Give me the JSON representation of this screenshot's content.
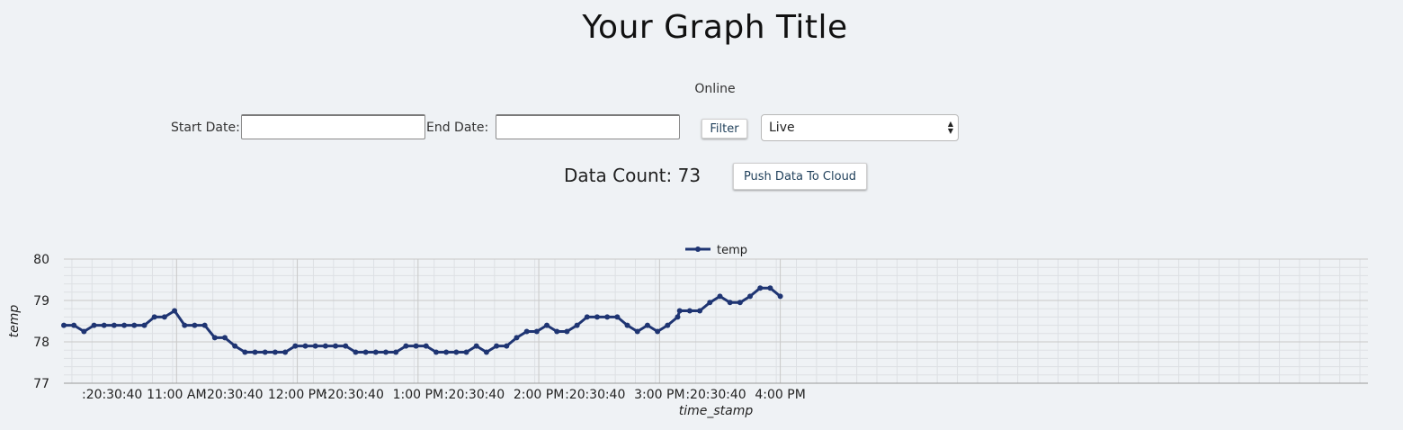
{
  "page": {
    "title": "Your Graph Title",
    "status": "Online"
  },
  "filter": {
    "start_label": "Start Date:",
    "start_value": "",
    "end_label": "End Date:",
    "end_value": "",
    "filter_button": "Filter",
    "mode_select": "Live",
    "count_label": "Data Count: 73",
    "push_button": "Push Data To Cloud"
  },
  "colors": {
    "line": "#1f3573",
    "background": "#eff2f5",
    "grid_major": "#c8c8c8",
    "grid_minor": "#dde0e4"
  },
  "chart_data": {
    "type": "line",
    "title": "",
    "xlabel": "time_stamp",
    "ylabel": "temp",
    "ylim": [
      77,
      80
    ],
    "yticks": [
      77,
      78,
      79,
      80
    ],
    "legend": {
      "position": "top-center",
      "entries": [
        "temp"
      ]
    },
    "grid": true,
    "x_range": [
      "10:43",
      "16:07"
    ],
    "xticks": [
      {
        "t": "10:50",
        "label": ":20"
      },
      {
        "t": "10:55",
        "label": ":30"
      },
      {
        "t": "11:00",
        "label": ":40"
      },
      {
        "t": "11:11",
        "label": "11:00 AM"
      },
      {
        "t": "11:20",
        "label": ":20"
      },
      {
        "t": "11:25",
        "label": ":30"
      },
      {
        "t": "11:30",
        "label": ":40"
      },
      {
        "t": "11:41",
        "label": "12:00 PM"
      },
      {
        "t": "11:50",
        "label": ":20"
      },
      {
        "t": "11:55",
        "label": ":30"
      },
      {
        "t": "12:00",
        "label": ":40"
      },
      {
        "t": "12:11",
        "label": "1:00 PM"
      },
      {
        "t": "12:20",
        "label": ":20"
      },
      {
        "t": "12:25",
        "label": ":30"
      },
      {
        "t": "12:30",
        "label": ":40"
      },
      {
        "t": "12:41",
        "label": "2:00 PM"
      },
      {
        "t": "12:50",
        "label": ":20"
      },
      {
        "t": "12:55",
        "label": ":30"
      },
      {
        "t": "13:00",
        "label": ":40"
      },
      {
        "t": "13:11",
        "label": "3:00 PM"
      },
      {
        "t": "13:20",
        "label": ":20"
      },
      {
        "t": "13:25",
        "label": ":30"
      },
      {
        "t": "13:30",
        "label": ":40"
      },
      {
        "t": "13:41",
        "label": "4:00 PM"
      }
    ],
    "series": [
      {
        "name": "temp",
        "points": [
          [
            "10:43",
            78.4
          ],
          [
            "10:45.5",
            78.4
          ],
          [
            "10:48",
            78.25
          ],
          [
            "10:50.5",
            78.4
          ],
          [
            "10:53",
            78.4
          ],
          [
            "10:55.5",
            78.4
          ],
          [
            "10:58",
            78.4
          ],
          [
            "11:00.5",
            78.4
          ],
          [
            "11:03",
            78.4
          ],
          [
            "11:05.5",
            78.6
          ],
          [
            "11:08",
            78.6
          ],
          [
            "11:10.5",
            78.75
          ],
          [
            "11:13",
            78.4
          ],
          [
            "11:15.5",
            78.4
          ],
          [
            "11:18",
            78.4
          ],
          [
            "11:20.5",
            78.1
          ],
          [
            "11:23",
            78.1
          ],
          [
            "11:25.5",
            77.9
          ],
          [
            "11:28",
            77.75
          ],
          [
            "11:30.5",
            77.75
          ],
          [
            "11:33",
            77.75
          ],
          [
            "11:35.5",
            77.75
          ],
          [
            "11:38",
            77.75
          ],
          [
            "11:40.5",
            77.9
          ],
          [
            "11:43",
            77.9
          ],
          [
            "11:45.5",
            77.9
          ],
          [
            "11:48",
            77.9
          ],
          [
            "11:50.5",
            77.9
          ],
          [
            "11:53",
            77.9
          ],
          [
            "11:55.5",
            77.75
          ],
          [
            "11:58",
            77.75
          ],
          [
            "12:00.5",
            77.75
          ],
          [
            "12:03",
            77.75
          ],
          [
            "12:05.5",
            77.75
          ],
          [
            "12:08",
            77.9
          ],
          [
            "12:10.5",
            77.9
          ],
          [
            "12:13",
            77.9
          ],
          [
            "12:15.5",
            77.75
          ],
          [
            "12:18",
            77.75
          ],
          [
            "12:20.5",
            77.75
          ],
          [
            "12:23",
            77.75
          ],
          [
            "12:25.5",
            77.9
          ],
          [
            "12:28",
            77.75
          ],
          [
            "12:30.5",
            77.9
          ],
          [
            "12:33",
            77.9
          ],
          [
            "12:35.5",
            78.1
          ],
          [
            "12:38",
            78.25
          ],
          [
            "12:40.5",
            78.25
          ],
          [
            "12:43",
            78.4
          ],
          [
            "12:45.5",
            78.25
          ],
          [
            "12:48",
            78.25
          ],
          [
            "12:50.5",
            78.4
          ],
          [
            "12:53",
            78.6
          ],
          [
            "12:55.5",
            78.6
          ],
          [
            "12:58",
            78.6
          ],
          [
            "13:00.5",
            78.6
          ],
          [
            "13:03",
            78.4
          ],
          [
            "13:05.5",
            78.25
          ],
          [
            "13:08",
            78.4
          ],
          [
            "13:10.5",
            78.25
          ],
          [
            "13:13",
            78.4
          ],
          [
            "13:15.5",
            78.6
          ],
          [
            "13:16",
            78.75
          ],
          [
            "13:18.5",
            78.75
          ],
          [
            "13:21",
            78.75
          ],
          [
            "13:23.5",
            78.95
          ],
          [
            "13:26",
            79.1
          ],
          [
            "13:28.5",
            78.95
          ],
          [
            "13:31",
            78.95
          ],
          [
            "13:33.5",
            79.1
          ],
          [
            "13:36",
            79.3
          ],
          [
            "13:38.5",
            79.3
          ],
          [
            "13:41",
            79.1
          ]
        ]
      }
    ]
  }
}
